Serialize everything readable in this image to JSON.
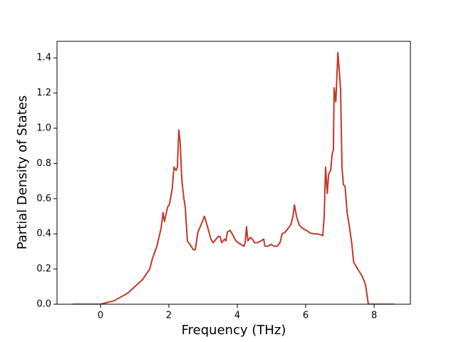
{
  "chart_data": {
    "type": "line",
    "xlabel": "Frequency (THz)",
    "ylabel": "Partial Density of States",
    "color": "#c0392b",
    "x": [
      -0.81,
      0,
      0.4,
      0.81,
      1.23,
      1.44,
      1.52,
      1.65,
      1.77,
      1.83,
      1.87,
      1.96,
      2.02,
      2.1,
      2.15,
      2.21,
      2.25,
      2.29,
      2.33,
      2.38,
      2.44,
      2.48,
      2.54,
      2.65,
      2.71,
      2.77,
      2.85,
      2.96,
      3.04,
      3.13,
      3.23,
      3.29,
      3.38,
      3.44,
      3.5,
      3.54,
      3.63,
      3.67,
      3.71,
      3.79,
      3.88,
      3.96,
      4.1,
      4.19,
      4.23,
      4.27,
      4.31,
      4.38,
      4.44,
      4.5,
      4.6,
      4.69,
      4.77,
      4.81,
      4.9,
      4.98,
      5.08,
      5.17,
      5.25,
      5.31,
      5.4,
      5.48,
      5.56,
      5.63,
      5.67,
      5.73,
      5.81,
      5.92,
      6.02,
      6.13,
      6.23,
      6.33,
      6.44,
      6.5,
      6.54,
      6.58,
      6.63,
      6.67,
      6.73,
      6.77,
      6.81,
      6.83,
      6.88,
      6.94,
      6.98,
      7.02,
      7.06,
      7.1,
      7.15,
      7.21,
      7.27,
      7.35,
      7.4,
      7.52,
      7.65,
      7.75,
      7.83,
      8.58
    ],
    "values": [
      0,
      0,
      0.02,
      0.065,
      0.14,
      0.2,
      0.26,
      0.33,
      0.43,
      0.52,
      0.47,
      0.55,
      0.57,
      0.66,
      0.78,
      0.76,
      0.78,
      0.99,
      0.92,
      0.7,
      0.6,
      0.55,
      0.36,
      0.33,
      0.31,
      0.31,
      0.41,
      0.46,
      0.5,
      0.44,
      0.37,
      0.35,
      0.37,
      0.385,
      0.385,
      0.35,
      0.37,
      0.36,
      0.41,
      0.42,
      0.39,
      0.36,
      0.34,
      0.33,
      0.35,
      0.44,
      0.36,
      0.38,
      0.37,
      0.35,
      0.35,
      0.36,
      0.37,
      0.33,
      0.33,
      0.34,
      0.33,
      0.33,
      0.35,
      0.4,
      0.41,
      0.43,
      0.45,
      0.5,
      0.565,
      0.5,
      0.45,
      0.43,
      0.42,
      0.405,
      0.4,
      0.4,
      0.395,
      0.39,
      0.5,
      0.78,
      0.63,
      0.74,
      0.76,
      0.85,
      0.88,
      1.23,
      1.15,
      1.43,
      1.33,
      1.22,
      0.78,
      0.68,
      0.67,
      0.52,
      0.45,
      0.34,
      0.24,
      0.2,
      0.16,
      0.11,
      0,
      0
    ],
    "xlim": [
      -1.27,
      9.06
    ],
    "ylim": [
      0,
      1.494
    ],
    "xticks": [
      0,
      2,
      4,
      6,
      8
    ],
    "yticks": [
      {
        "value": 0,
        "label": "0.0"
      },
      0.2,
      0.4,
      0.6,
      0.8,
      {
        "value": 1,
        "label": "1.0"
      },
      1.2,
      1.4
    ]
  }
}
